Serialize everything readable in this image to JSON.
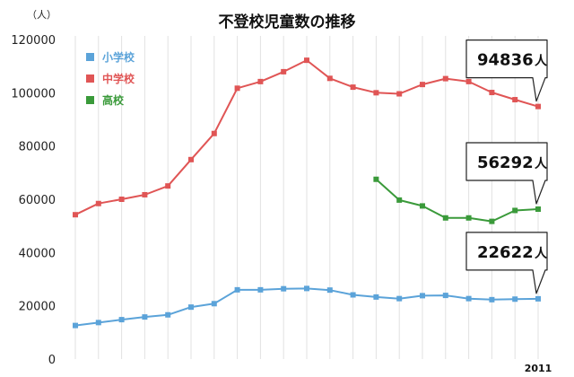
{
  "chart_data": {
    "type": "line",
    "title": "不登校児童数の推移",
    "y_unit": "（人）",
    "ylim": [
      0,
      120000
    ],
    "yticks": [
      0,
      20000,
      40000,
      60000,
      80000,
      100000,
      120000
    ],
    "ytick_labels": [
      "0",
      "20000",
      "40000",
      "60000",
      "80000",
      "100000",
      "120000"
    ],
    "x": [
      1991,
      1992,
      1993,
      1994,
      1995,
      1996,
      1997,
      1998,
      1999,
      2000,
      2001,
      2002,
      2003,
      2004,
      2005,
      2006,
      2007,
      2008,
      2009,
      2010,
      2011
    ],
    "xtick_labels": [
      "",
      "",
      "",
      "",
      "",
      "",
      "",
      "",
      "",
      "",
      "",
      "",
      "",
      "",
      "",
      "",
      "",
      "",
      "",
      "",
      "2011"
    ],
    "grid": "vertical",
    "legend_position": "top-left",
    "series": [
      {
        "name": "小学校",
        "color": "#5ba3d9",
        "values": [
          12600,
          13700,
          14800,
          15800,
          16600,
          19500,
          20800,
          26000,
          26000,
          26400,
          26500,
          25900,
          24100,
          23300,
          22700,
          23800,
          23900,
          22700,
          22300,
          22500,
          22622
        ]
      },
      {
        "name": "中学校",
        "color": "#e05555",
        "values": [
          54200,
          58400,
          60000,
          61700,
          65000,
          74900,
          84700,
          101700,
          104200,
          107900,
          112200,
          105400,
          102100,
          100000,
          99600,
          103100,
          105300,
          104200,
          100100,
          97400,
          94836
        ]
      },
      {
        "name": "高校",
        "color": "#3a9a3a",
        "values": [
          null,
          null,
          null,
          null,
          null,
          null,
          null,
          null,
          null,
          null,
          null,
          null,
          null,
          67500,
          59700,
          57500,
          53000,
          53000,
          51700,
          55800,
          56292
        ]
      }
    ],
    "annotations": [
      {
        "series": "中学校",
        "value": "94836",
        "unit": "人"
      },
      {
        "series": "高校",
        "value": "56292",
        "unit": "人"
      },
      {
        "series": "小学校",
        "value": "22622",
        "unit": "人"
      }
    ]
  }
}
